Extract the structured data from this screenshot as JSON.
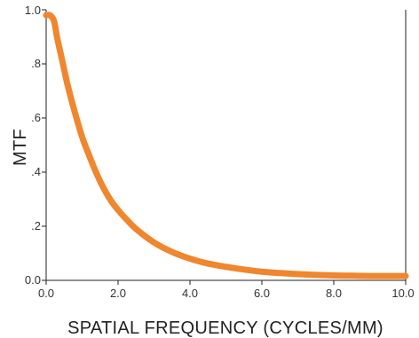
{
  "chart_data": {
    "type": "line",
    "title": "",
    "xlabel": "SPATIAL FREQUENCY (CYCLES/MM)",
    "ylabel": "MTF",
    "xlim": [
      0,
      10
    ],
    "ylim": [
      0,
      1
    ],
    "grid": false,
    "legend": "none",
    "x_ticks": [
      {
        "value": 0,
        "label": "0.0"
      },
      {
        "value": 2,
        "label": "2.0"
      },
      {
        "value": 4,
        "label": "4.0"
      },
      {
        "value": 6,
        "label": "6.0"
      },
      {
        "value": 8,
        "label": "8.0"
      },
      {
        "value": 10,
        "label": "10.0"
      }
    ],
    "y_ticks": [
      {
        "value": 0,
        "label": "0.0"
      },
      {
        "value": 0.2,
        "label": ".2"
      },
      {
        "value": 0.4,
        "label": ".4"
      },
      {
        "value": 0.6,
        "label": ".6"
      },
      {
        "value": 0.8,
        "label": ".8"
      },
      {
        "value": 1.0,
        "label": "1.0"
      }
    ],
    "series": [
      {
        "color": "#f0862e",
        "x": [
          0,
          0.1,
          0.2,
          0.25,
          0.3,
          0.4,
          0.5,
          0.6,
          0.8,
          1.0,
          1.2,
          1.4,
          1.6,
          1.8,
          2.0,
          2.2,
          2.5,
          3.0,
          3.5,
          4.0,
          4.5,
          5.0,
          5.5,
          6.0,
          6.5,
          7.0,
          7.5,
          8.0,
          8.5,
          9.0,
          9.5,
          10.0
        ],
        "y": [
          0.98,
          0.98,
          0.965,
          0.94,
          0.9,
          0.84,
          0.78,
          0.72,
          0.62,
          0.53,
          0.46,
          0.395,
          0.34,
          0.295,
          0.26,
          0.23,
          0.19,
          0.14,
          0.105,
          0.08,
          0.062,
          0.05,
          0.04,
          0.032,
          0.027,
          0.023,
          0.02,
          0.018,
          0.017,
          0.016,
          0.016,
          0.016
        ]
      }
    ]
  }
}
